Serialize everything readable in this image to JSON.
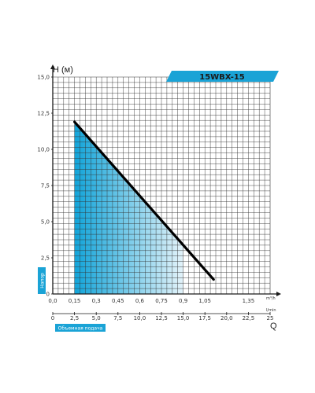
{
  "chart_data": {
    "type": "line",
    "title": "15WBX-15",
    "ylabel": "H (м)",
    "ylabel_tag": "Напор",
    "xlabel_tag": "Объемная подача",
    "x_axis_symbol": "Q",
    "ylim": [
      0,
      15
    ],
    "y_ticks": [
      "0",
      "2,5",
      "5,0",
      "7,5",
      "10,0",
      "12,5",
      "15,0"
    ],
    "x_ticks_top": [
      "0,0",
      "0,15",
      "0,3",
      "0,45",
      "0,6",
      "0,75",
      "0,9",
      "1,05",
      "1,35"
    ],
    "x_ticks_top_unit": "m³/h",
    "x_ticks_bottom": [
      "0",
      "2,5",
      "5,0",
      "7,5",
      "10,0",
      "12,5",
      "15,0",
      "17,5",
      "20,0",
      "22,5",
      "25"
    ],
    "x_ticks_bottom_unit": "l/min",
    "xlim_lpm": [
      0,
      25
    ],
    "grid": true,
    "series": [
      {
        "x": [
          2.5,
          18.5
        ],
        "y": [
          11.9,
          1.0
        ]
      }
    ],
    "operating_range_lpm": [
      2.5,
      15.0
    ],
    "colors": {
      "curve": "#000000",
      "banner": "#1aa3d6",
      "tag": "#1aa3d6",
      "fill_dark": "#12a4d9",
      "fill_light": "#e3f3fa",
      "grid": "#333333",
      "axis": "#1a1a1a"
    }
  }
}
